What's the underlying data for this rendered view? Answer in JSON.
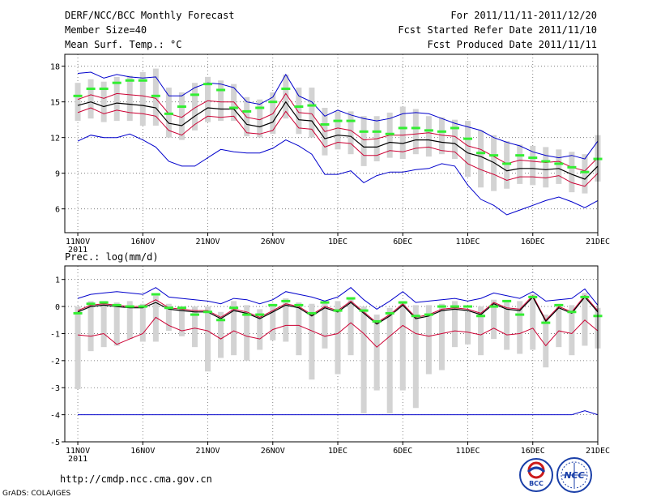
{
  "header": {
    "title": "DERF/NCC/BCC Monthly Forecast",
    "member_size": "Member Size=40",
    "variable": "Mean Surf. Temp.: °C",
    "period": "For 2011/11/11-2011/12/20",
    "fcst_started": "Fcst Started Refer Date 2011/11/10",
    "fcst_produced": "Fcst Produced Date 2011/11/11"
  },
  "lower_panel_title": "Prec.: log(mm/d)",
  "footer": {
    "url": "http://cmdp.ncc.cma.gov.cn",
    "grads": "GrADS: COLA/IGES",
    "logo_left": "BCC",
    "logo_right": "NCC"
  },
  "colors": {
    "median": "#000000",
    "inner": "#cc0033",
    "outer": "#0000cc",
    "box": "#d3d3d3",
    "obs": "#33ee33",
    "grid": "#666666"
  },
  "chart_data": [
    {
      "type": "line",
      "title": "Mean Surf. Temp.: °C",
      "x_tick_labels": [
        "11NOV",
        "16NOV",
        "21NOV",
        "26NOV",
        "1DEC",
        "6DEC",
        "11DEC",
        "16DEC",
        "21DEC"
      ],
      "x_tick_index": [
        0,
        5,
        10,
        15,
        20,
        25,
        30,
        35,
        40
      ],
      "x_sublabel": "2011",
      "ylim": [
        4,
        19
      ],
      "y_ticks": [
        6,
        9,
        12,
        15,
        18
      ],
      "y_tick_labels": [
        "6",
        "9",
        "12",
        "15",
        "18"
      ],
      "x_range": [
        -1,
        40
      ],
      "grid": true,
      "series": [
        {
          "name": "upper",
          "values": [
            17.4,
            17.5,
            17.0,
            17.3,
            17.1,
            17.0,
            17.1,
            15.5,
            15.5,
            16.2,
            16.6,
            16.5,
            16.2,
            15.0,
            14.8,
            15.4,
            17.3,
            15.5,
            15.0,
            13.8,
            14.3,
            13.9,
            13.6,
            13.4,
            13.6,
            14.0,
            14.1,
            14.0,
            13.6,
            13.2,
            12.9,
            12.6,
            12.0,
            11.6,
            11.3,
            10.8,
            10.5,
            10.3,
            10.5,
            10.2,
            11.7
          ]
        },
        {
          "name": "inner_upper",
          "values": [
            15.2,
            15.6,
            15.3,
            15.7,
            15.6,
            15.5,
            15.3,
            14.0,
            13.7,
            14.5,
            15.1,
            15.0,
            15.0,
            13.7,
            13.5,
            14.0,
            15.7,
            14.1,
            14.0,
            12.5,
            12.8,
            12.6,
            11.8,
            11.9,
            12.2,
            12.2,
            12.3,
            12.4,
            12.2,
            12.1,
            11.3,
            11.0,
            10.4,
            9.8,
            10.1,
            10.0,
            9.9,
            10.0,
            9.5,
            9.2,
            10.3
          ]
        },
        {
          "name": "median",
          "values": [
            14.7,
            15.0,
            14.6,
            14.9,
            14.8,
            14.7,
            14.5,
            13.2,
            13.0,
            13.8,
            14.5,
            14.4,
            14.4,
            13.1,
            12.9,
            13.3,
            15.0,
            13.5,
            13.4,
            11.9,
            12.2,
            12.1,
            11.2,
            11.2,
            11.6,
            11.5,
            11.8,
            11.8,
            11.6,
            11.5,
            10.7,
            10.4,
            9.9,
            9.2,
            9.4,
            9.4,
            9.3,
            9.4,
            8.9,
            8.5,
            9.6
          ]
        },
        {
          "name": "inner_lower",
          "values": [
            14.1,
            14.5,
            14.0,
            14.3,
            14.1,
            14.0,
            13.8,
            12.6,
            12.2,
            13.1,
            13.8,
            13.7,
            13.8,
            12.4,
            12.3,
            12.6,
            14.2,
            12.8,
            12.7,
            11.2,
            11.6,
            11.5,
            10.5,
            10.5,
            10.9,
            10.8,
            11.1,
            11.2,
            10.9,
            10.8,
            9.8,
            9.3,
            8.9,
            8.4,
            8.7,
            8.7,
            8.6,
            8.8,
            8.2,
            7.9,
            9.0
          ]
        },
        {
          "name": "lower",
          "values": [
            11.7,
            12.2,
            12.0,
            12.0,
            12.3,
            11.8,
            11.2,
            10.0,
            9.6,
            9.6,
            10.3,
            11.0,
            10.8,
            10.7,
            10.7,
            11.1,
            11.8,
            11.3,
            10.6,
            8.9,
            8.9,
            9.2,
            8.2,
            8.8,
            9.1,
            9.1,
            9.3,
            9.4,
            9.8,
            9.6,
            8.0,
            6.8,
            6.3,
            5.5,
            5.9,
            6.3,
            6.7,
            7.0,
            6.6,
            6.1,
            6.7
          ]
        }
      ],
      "box_top": [
        16.6,
        16.9,
        16.7,
        17.1,
        17.2,
        17.5,
        17.8,
        16.2,
        15.8,
        16.6,
        17.1,
        16.8,
        16.5,
        15.4,
        15.2,
        15.8,
        17.3,
        16.2,
        16.2,
        14.5,
        14.2,
        14.2,
        13.8,
        13.8,
        14.1,
        14.6,
        14.4,
        13.8,
        13.7,
        13.5,
        13.4,
        12.6,
        12.2,
        11.7,
        11.4,
        11.3,
        11.2,
        11.0,
        10.8,
        10.6,
        12.2
      ],
      "box_bottom": [
        13.4,
        13.6,
        13.3,
        13.4,
        13.4,
        13.0,
        13.0,
        12.0,
        11.8,
        12.6,
        13.3,
        13.4,
        13.4,
        12.1,
        12.0,
        12.3,
        13.6,
        12.3,
        12.0,
        10.5,
        11.0,
        10.6,
        9.6,
        10.0,
        10.3,
        10.2,
        10.6,
        10.4,
        10.6,
        10.2,
        8.7,
        7.8,
        7.5,
        7.7,
        8.1,
        8.0,
        7.8,
        8.1,
        7.4,
        7.3,
        8.3
      ],
      "observed": [
        15.5,
        16.1,
        16.1,
        16.6,
        16.8,
        16.8,
        15.5,
        14.0,
        14.6,
        15.6,
        16.5,
        16.0,
        14.5,
        14.2,
        14.5,
        15.0,
        16.1,
        14.6,
        14.7,
        13.1,
        13.4,
        13.4,
        12.5,
        12.5,
        12.3,
        12.8,
        12.8,
        12.6,
        12.5,
        12.8,
        11.9,
        10.7,
        10.5,
        9.8,
        10.5,
        10.3,
        10.0,
        9.8,
        9.5,
        9.1,
        10.2
      ]
    },
    {
      "type": "line",
      "title": "Prec.: log(mm/d)",
      "x_tick_labels": [
        "11NOV",
        "16NOV",
        "21NOV",
        "26NOV",
        "1DEC",
        "6DEC",
        "11DEC",
        "16DEC",
        "21DEC"
      ],
      "x_tick_index": [
        0,
        5,
        10,
        15,
        20,
        25,
        30,
        35,
        40
      ],
      "x_sublabel": "2011",
      "ylim": [
        -5,
        1.5
      ],
      "y_ticks": [
        -5,
        -4,
        -3,
        -2,
        -1,
        0,
        1
      ],
      "y_tick_labels": [
        "-5",
        "-4",
        "-3",
        "-2",
        "-1",
        "0",
        "1"
      ],
      "x_range": [
        -1,
        40
      ],
      "grid": true,
      "series": [
        {
          "name": "upper",
          "values": [
            0.3,
            0.45,
            0.5,
            0.55,
            0.5,
            0.45,
            0.7,
            0.35,
            0.3,
            0.25,
            0.2,
            0.1,
            0.3,
            0.25,
            0.1,
            0.25,
            0.55,
            0.45,
            0.35,
            0.2,
            0.35,
            0.7,
            0.25,
            -0.1,
            0.2,
            0.55,
            0.15,
            0.2,
            0.25,
            0.3,
            0.2,
            0.3,
            0.5,
            0.4,
            0.3,
            0.55,
            0.2,
            0.25,
            0.3,
            0.65,
            0.05
          ]
        },
        {
          "name": "inner_upper",
          "values": [
            -0.15,
            0.05,
            0.1,
            0.05,
            0.0,
            0.0,
            0.25,
            -0.05,
            -0.1,
            -0.15,
            -0.15,
            -0.4,
            -0.1,
            -0.2,
            -0.4,
            -0.15,
            0.1,
            0.0,
            -0.3,
            0.0,
            -0.15,
            0.2,
            -0.2,
            -0.6,
            -0.3,
            0.1,
            -0.4,
            -0.3,
            -0.1,
            -0.05,
            -0.1,
            -0.25,
            0.15,
            -0.05,
            -0.1,
            0.4,
            -0.5,
            0.0,
            -0.2,
            0.4,
            -0.15
          ]
        },
        {
          "name": "median",
          "values": [
            -0.2,
            0.0,
            0.05,
            0.0,
            -0.05,
            -0.05,
            0.15,
            -0.1,
            -0.15,
            -0.2,
            -0.2,
            -0.45,
            -0.15,
            -0.25,
            -0.45,
            -0.2,
            0.05,
            -0.05,
            -0.35,
            -0.05,
            -0.2,
            0.15,
            -0.25,
            -0.65,
            -0.35,
            0.05,
            -0.45,
            -0.35,
            -0.15,
            -0.1,
            -0.15,
            -0.3,
            0.1,
            -0.1,
            -0.15,
            0.35,
            -0.55,
            -0.05,
            -0.25,
            0.35,
            -0.2
          ]
        },
        {
          "name": "inner_lower",
          "values": [
            -1.05,
            -1.1,
            -1.0,
            -1.4,
            -1.2,
            -1.0,
            -0.4,
            -0.7,
            -0.9,
            -0.8,
            -0.9,
            -1.2,
            -0.9,
            -1.1,
            -1.2,
            -0.85,
            -0.7,
            -0.7,
            -0.9,
            -1.1,
            -1.0,
            -0.6,
            -1.0,
            -1.5,
            -1.1,
            -0.7,
            -1.0,
            -1.1,
            -1.0,
            -0.9,
            -0.95,
            -1.05,
            -0.8,
            -1.05,
            -1.0,
            -0.8,
            -1.45,
            -0.9,
            -1.0,
            -0.5,
            -0.9
          ]
        },
        {
          "name": "lower",
          "values": [
            -4.0,
            -4.0,
            -4.0,
            -4.0,
            -4.0,
            -4.0,
            -4.0,
            -4.0,
            -4.0,
            -4.0,
            -4.0,
            -4.0,
            -4.0,
            -4.0,
            -4.0,
            -4.0,
            -4.0,
            -4.0,
            -4.0,
            -4.0,
            -4.0,
            -4.0,
            -4.0,
            -4.0,
            -4.0,
            -4.0,
            -4.0,
            -4.0,
            -4.0,
            -4.0,
            -4.0,
            -4.0,
            -4.0,
            -4.0,
            -4.0,
            -4.0,
            -4.0,
            -4.0,
            -4.0,
            -3.85,
            -4.0
          ]
        }
      ],
      "box_top": [
        0.0,
        0.2,
        0.2,
        0.15,
        0.2,
        0.1,
        0.4,
        0.1,
        0.0,
        0.0,
        0.0,
        -0.2,
        0.2,
        0.05,
        -0.1,
        0.1,
        0.3,
        0.15,
        0.1,
        0.2,
        0.2,
        0.3,
        0.0,
        -0.3,
        -0.05,
        0.2,
        0.05,
        0.05,
        0.1,
        0.2,
        -0.2,
        0.0,
        0.25,
        0.2,
        0.2,
        0.45,
        -0.3,
        0.1,
        0.05,
        0.5,
        -0.05
      ],
      "box_bottom": [
        -3.05,
        -1.65,
        -1.5,
        -1.45,
        -1.2,
        -1.3,
        -1.3,
        -0.9,
        -1.1,
        -1.5,
        -2.4,
        -1.9,
        -1.8,
        -2.0,
        -1.6,
        -1.25,
        -1.3,
        -1.8,
        -2.7,
        -1.55,
        -2.5,
        -1.8,
        -3.95,
        -3.1,
        -3.95,
        -3.1,
        -3.75,
        -2.5,
        -2.35,
        -1.5,
        -1.4,
        -1.8,
        -1.2,
        -1.6,
        -1.75,
        -1.6,
        -2.25,
        -1.5,
        -1.8,
        -1.45,
        -1.55
      ],
      "observed": [
        -0.25,
        0.1,
        0.15,
        0.05,
        0.0,
        0.0,
        0.45,
        -0.05,
        -0.05,
        -0.3,
        -0.2,
        -0.5,
        -0.05,
        -0.3,
        -0.3,
        0.05,
        0.2,
        0.05,
        -0.25,
        0.15,
        -0.15,
        0.3,
        -0.15,
        -0.55,
        -0.25,
        0.15,
        -0.35,
        -0.3,
        0.0,
        0.0,
        0.0,
        -0.35,
        0.0,
        0.2,
        -0.3,
        0.35,
        -0.6,
        0.05,
        -0.2,
        0.35,
        -0.35
      ]
    }
  ]
}
